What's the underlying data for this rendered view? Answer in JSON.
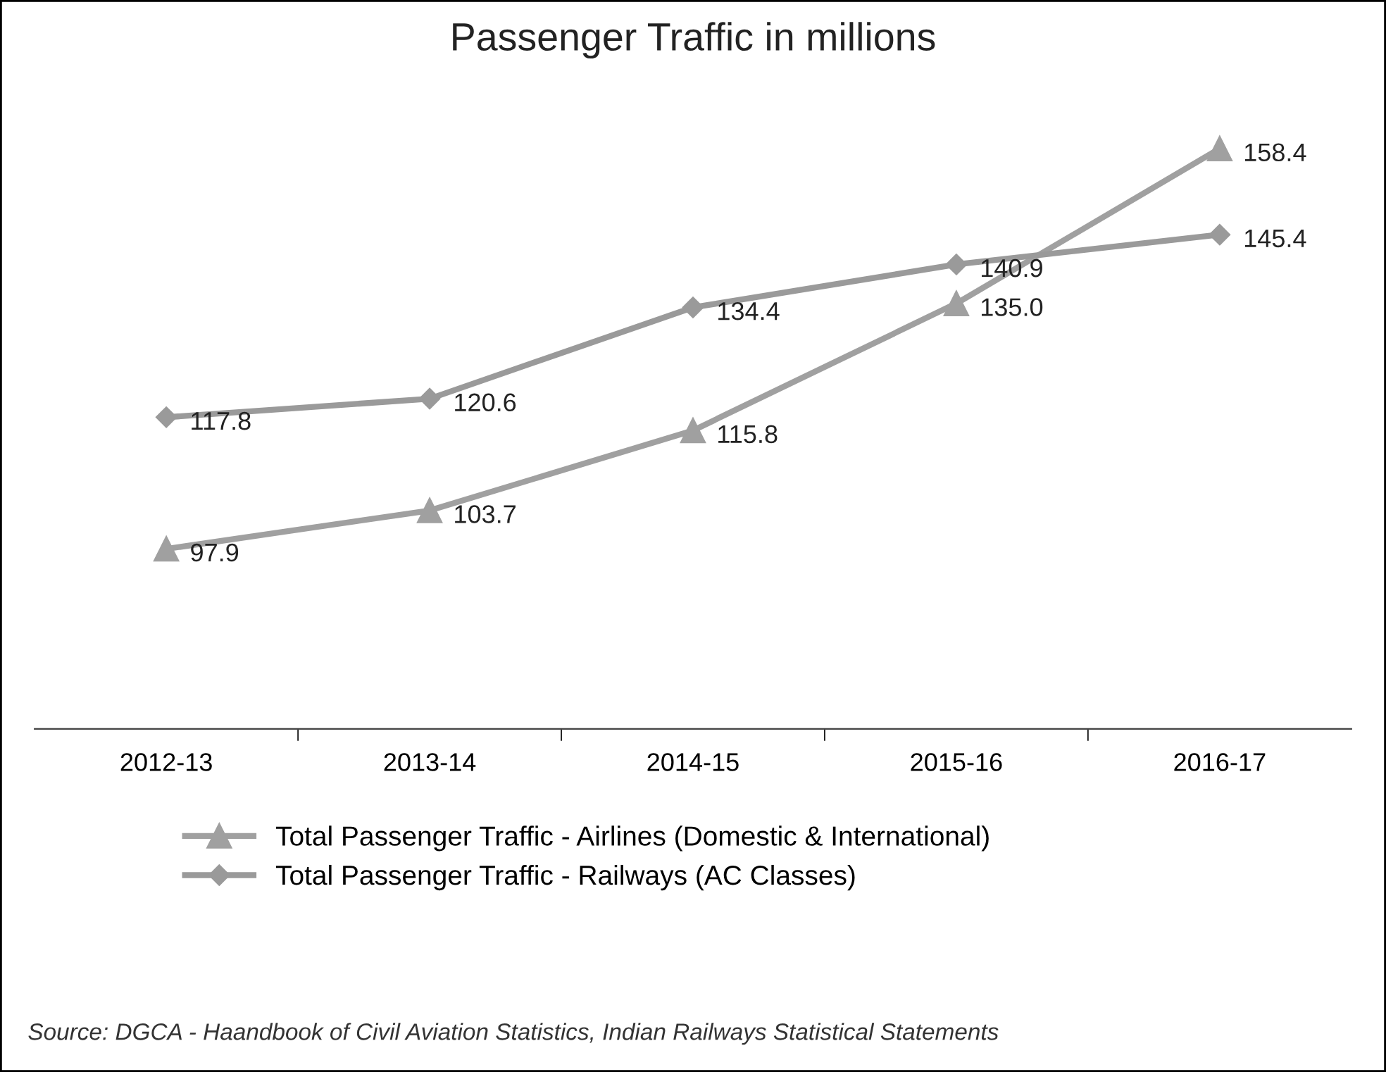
{
  "chart_data": {
    "type": "line",
    "title": "Passenger Traffic in millions",
    "categories": [
      "2012-13",
      "2013-14",
      "2014-15",
      "2015-16",
      "2016-17"
    ],
    "series": [
      {
        "name": "Total Passenger Traffic - Airlines (Domestic & International)",
        "color": "#a0a0a0",
        "marker": "triangle",
        "values": [
          97.9,
          103.7,
          115.8,
          135.0,
          158.4
        ],
        "value_labels": [
          "97.9",
          "103.7",
          "115.8",
          "135.0",
          "158.4"
        ]
      },
      {
        "name": "Total Passenger Traffic - Railways (AC Classes)",
        "color": "#9a9a9a",
        "marker": "diamond",
        "values": [
          117.8,
          120.6,
          134.4,
          140.9,
          145.4
        ],
        "value_labels": [
          "117.8",
          "120.6",
          "134.4",
          "140.9",
          "145.4"
        ]
      }
    ],
    "legend": "bottom",
    "grid": false,
    "annotations": [
      "Source: DGCA - Haandbook of Civil Aviation Statistics, Indian Railways Statistical Statements"
    ]
  }
}
